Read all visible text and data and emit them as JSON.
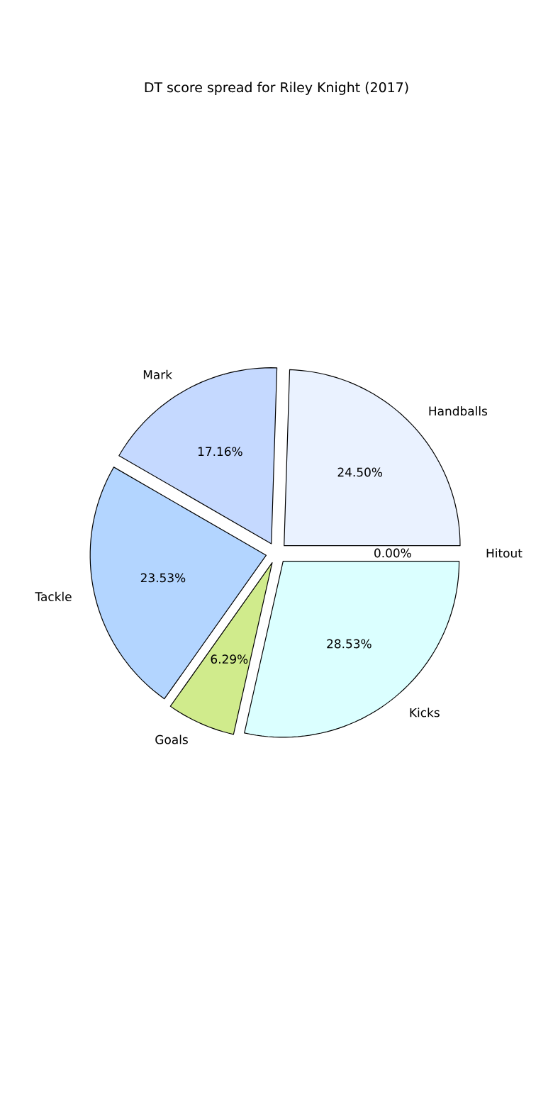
{
  "chart_data": {
    "type": "pie",
    "title": "DT score spread for Riley Knight (2017)",
    "categories": [
      "Handballs",
      "Mark",
      "Tackle",
      "Goals",
      "Kicks",
      "Hitout"
    ],
    "values": [
      24.5,
      17.16,
      23.53,
      6.29,
      28.53,
      0.0
    ],
    "value_labels": [
      "24.50%",
      "17.16%",
      "23.53%",
      "6.29%",
      "28.53%",
      "0.00%"
    ],
    "colors": [
      "#eaf2ff",
      "#c5d9ff",
      "#b3d5ff",
      "#d0eb8c",
      "#dbffff",
      "#e6e6e6"
    ]
  }
}
